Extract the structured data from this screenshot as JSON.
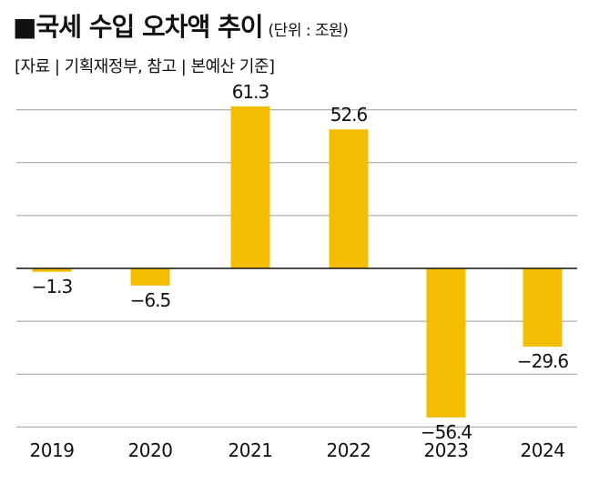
{
  "header": {
    "title": "■국세 수입 오차액 추이",
    "unit": "(단위 : 조원)",
    "source": "[자료 | 기획재정부, 참고 | 본예산 기준]"
  },
  "colors": {
    "bar": "#F5BD00",
    "grid": "#9A9A9A",
    "zero_line": "#111111"
  },
  "chart_data": {
    "type": "bar",
    "title": "국세 수입 오차액 추이",
    "unit": "조원",
    "categories": [
      "2019",
      "2020",
      "2021",
      "2022",
      "2023",
      "2024"
    ],
    "values": [
      -1.3,
      -6.5,
      61.3,
      52.6,
      -56.4,
      -29.6
    ],
    "labels": [
      "−1.3",
      "−6.5",
      "61.3",
      "52.6",
      "−56.4",
      "−29.6"
    ],
    "ylim": [
      -60,
      70
    ],
    "grid": true,
    "legend": "none"
  }
}
